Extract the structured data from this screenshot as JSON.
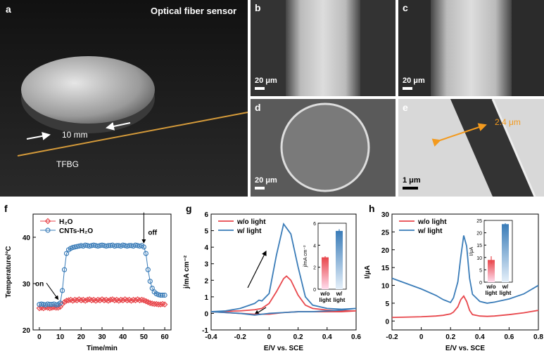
{
  "panels": [
    {
      "label": "a",
      "title": "Optical fiber sensor",
      "scale": "10 mm",
      "fiber": "TFBG"
    },
    {
      "label": "b",
      "scale": "20 μm"
    },
    {
      "label": "c",
      "scale": "20 μm"
    },
    {
      "label": "d",
      "scale": "20 μm"
    },
    {
      "label": "e",
      "thickness": "2.4 μm",
      "scale": "1 μm"
    }
  ],
  "chart_data": [
    {
      "type": "line",
      "label": "f",
      "xlabel": "Time/min",
      "ylabel": "Temperature/°C",
      "legend": "upper left",
      "annotations": [
        "on",
        "off"
      ],
      "x": [
        0,
        1,
        2,
        3,
        4,
        5,
        6,
        7,
        8,
        9,
        10,
        11,
        12,
        13,
        14,
        15,
        16,
        17,
        18,
        19,
        20,
        21,
        22,
        23,
        24,
        25,
        26,
        27,
        28,
        29,
        30,
        31,
        32,
        33,
        34,
        35,
        36,
        37,
        38,
        39,
        40,
        41,
        42,
        43,
        44,
        45,
        46,
        47,
        48,
        49,
        50,
        51,
        52,
        53,
        54,
        55,
        56,
        57,
        58,
        59,
        60
      ],
      "series": [
        {
          "name": "H₂O",
          "color": "#e8474c",
          "marker": "diamond",
          "values": [
            24.7,
            24.8,
            24.7,
            24.9,
            24.8,
            24.7,
            24.8,
            24.9,
            24.8,
            24.8,
            25.0,
            25.6,
            26.0,
            26.3,
            26.4,
            26.5,
            26.3,
            26.5,
            26.4,
            26.6,
            26.4,
            26.5,
            26.3,
            26.5,
            26.6,
            26.4,
            26.5,
            26.3,
            26.5,
            26.4,
            26.6,
            26.4,
            26.5,
            26.3,
            26.5,
            26.6,
            26.4,
            26.5,
            26.3,
            26.5,
            26.4,
            26.6,
            26.4,
            26.5,
            26.3,
            26.5,
            26.4,
            26.6,
            26.4,
            26.5,
            26.4,
            26.2,
            26.0,
            25.8,
            25.7,
            25.6,
            25.6,
            25.5,
            25.5,
            25.6,
            25.5
          ]
        },
        {
          "name": "CNTs-H₂O",
          "color": "#3a7cb8",
          "marker": "circle",
          "values": [
            25.5,
            25.6,
            25.5,
            25.4,
            25.6,
            25.5,
            25.5,
            25.6,
            25.4,
            25.5,
            25.8,
            28.5,
            33.0,
            36.5,
            37.3,
            37.6,
            37.8,
            37.9,
            38.0,
            38.1,
            38.2,
            38.1,
            38.3,
            38.2,
            38.1,
            38.2,
            38.3,
            38.2,
            38.1,
            38.2,
            38.3,
            38.2,
            38.1,
            38.2,
            38.2,
            38.3,
            38.1,
            38.2,
            38.2,
            38.1,
            38.3,
            38.2,
            38.1,
            38.2,
            38.2,
            38.1,
            38.3,
            38.2,
            38.1,
            38.2,
            37.9,
            36.5,
            33.0,
            30.5,
            29.0,
            28.2,
            27.8,
            27.6,
            27.5,
            27.5,
            27.5
          ]
        }
      ],
      "xlim": [
        -3,
        63
      ],
      "xticks": [
        0,
        10,
        20,
        30,
        40,
        50,
        60
      ],
      "ylim": [
        20,
        45
      ],
      "yticks": [
        20,
        30,
        40
      ]
    },
    {
      "type": "line",
      "label": "g",
      "xlabel": "E/V vs. SCE",
      "ylabel": "j/mA cm⁻²",
      "legend": "upper left",
      "series": [
        {
          "name": "w/o light",
          "color": "#e8474c",
          "x": [
            -0.4,
            -0.3,
            -0.2,
            -0.1,
            -0.05,
            0,
            0.05,
            0.1,
            0.12,
            0.15,
            0.2,
            0.25,
            0.3,
            0.4,
            0.5,
            0.6,
            0.5,
            0.4,
            0.3,
            0.2,
            0.1,
            0,
            -0.1,
            -0.2,
            -0.3,
            -0.4
          ],
          "values": [
            0.1,
            0.12,
            0.15,
            0.22,
            0.3,
            0.6,
            1.3,
            2.1,
            2.25,
            2.0,
            1.1,
            0.5,
            0.3,
            0.2,
            0.15,
            0.15,
            0.1,
            0.1,
            0.1,
            0.1,
            0.05,
            -0.05,
            -0.05,
            0,
            0.05,
            0.1
          ]
        },
        {
          "name": "w/ light",
          "color": "#3a7cb8",
          "x": [
            -0.4,
            -0.3,
            -0.2,
            -0.1,
            -0.07,
            -0.05,
            0,
            0.05,
            0.1,
            0.15,
            0.2,
            0.25,
            0.3,
            0.4,
            0.5,
            0.6,
            0.5,
            0.4,
            0.3,
            0.2,
            0.1,
            0,
            -0.1,
            -0.2,
            -0.3,
            -0.4
          ],
          "values": [
            0.1,
            0.15,
            0.3,
            0.6,
            0.8,
            0.75,
            1.2,
            3.5,
            5.4,
            4.8,
            2.8,
            1.0,
            0.5,
            0.3,
            0.25,
            0.3,
            0.2,
            0.15,
            0.1,
            0.1,
            0.05,
            0,
            -0.1,
            0,
            0.05,
            0.1
          ]
        }
      ],
      "xlim": [
        -0.4,
        0.6
      ],
      "xticks": [
        -0.4,
        -0.2,
        0,
        0.2,
        0.4,
        0.6
      ],
      "ylim": [
        -1,
        6
      ],
      "yticks": [
        -1,
        0,
        1,
        2,
        3,
        4,
        5,
        6
      ],
      "inset": {
        "type": "bar",
        "ylabel": "j/mA cm⁻²",
        "categories": [
          "w/o light",
          "w/ light"
        ],
        "values": [
          2.9,
          5.3
        ],
        "errors": [
          0.1,
          0.15
        ],
        "colors": [
          "#e8474c",
          "#3a7cb8"
        ],
        "ylim": [
          0,
          6
        ],
        "yticks": [
          0,
          2,
          4,
          6
        ]
      }
    },
    {
      "type": "line",
      "label": "h",
      "xlabel": "E/V vs. SCE",
      "ylabel": "I/μA",
      "legend": "upper left",
      "x": [
        -0.2,
        -0.1,
        0,
        0.1,
        0.15,
        0.2,
        0.22,
        0.25,
        0.27,
        0.29,
        0.31,
        0.33,
        0.35,
        0.4,
        0.45,
        0.5,
        0.6,
        0.7,
        0.8
      ],
      "series": [
        {
          "name": "w/o light",
          "color": "#e8474c",
          "values": [
            1.0,
            1.1,
            1.2,
            1.4,
            1.6,
            2.0,
            2.5,
            4.0,
            6.0,
            7.0,
            5.5,
            3.0,
            1.8,
            1.4,
            1.3,
            1.4,
            1.8,
            2.3,
            3.0
          ]
        },
        {
          "name": "w/ light",
          "color": "#3a7cb8",
          "values": [
            12.0,
            10.5,
            9.0,
            7.2,
            6.0,
            5.2,
            6.5,
            11.0,
            18.0,
            24.0,
            21.0,
            12.0,
            7.5,
            5.5,
            5.0,
            5.3,
            6.2,
            7.6,
            10.0
          ]
        }
      ],
      "xlim": [
        -0.2,
        0.8
      ],
      "xticks": [
        -0.2,
        0,
        0.2,
        0.4,
        0.6,
        0.8
      ],
      "ylim": [
        -2.5,
        30
      ],
      "yticks": [
        0,
        5,
        10,
        15,
        20,
        25,
        30
      ],
      "inset": {
        "type": "bar",
        "ylabel": "I/μA",
        "categories": [
          "w/o light",
          "w/ light"
        ],
        "values": [
          9,
          23.5
        ],
        "errors": [
          1.5,
          0.4
        ],
        "colors": [
          "#e8474c",
          "#3a7cb8"
        ],
        "ylim": [
          0,
          25
        ],
        "yticks": [
          0,
          5,
          10,
          15,
          20,
          25
        ]
      }
    }
  ]
}
